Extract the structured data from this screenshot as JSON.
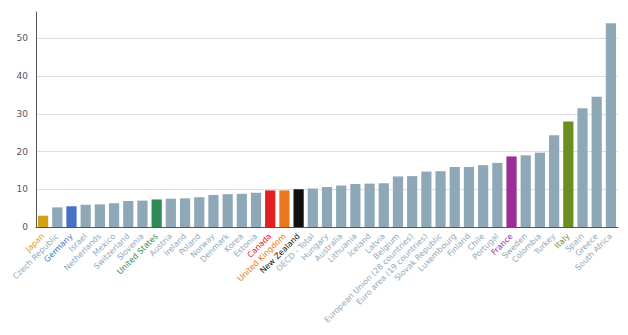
{
  "chart_data": {
    "type": "bar",
    "categories": [
      "Japan",
      "Czech Republic",
      "Germany",
      "Israel",
      "Netherlands",
      "Mexico",
      "Switzerland",
      "Slovenia",
      "United States",
      "Austria",
      "Ireland",
      "Poland",
      "Norway",
      "Denmark",
      "Korea",
      "Estonia",
      "Canada",
      "United Kingdom",
      "New Zealand",
      "OECD - Total",
      "Hungary",
      "Australia",
      "Lithuania",
      "Iceland",
      "Latvia",
      "Belgium",
      "European Union (28 countries)",
      "Euro area (19 countries)",
      "Slovak Republic",
      "Luxembourg",
      "Finland",
      "Chile",
      "Portugal",
      "France",
      "Sweden",
      "Colombia",
      "Turkey",
      "Italy",
      "Spain",
      "Greece",
      "South Africa"
    ],
    "values": [
      3.0,
      5.2,
      5.5,
      5.9,
      6.0,
      6.3,
      6.9,
      7.0,
      7.3,
      7.5,
      7.6,
      7.9,
      8.5,
      8.7,
      8.8,
      9.1,
      9.7,
      9.7,
      10.0,
      10.2,
      10.6,
      11.0,
      11.4,
      11.5,
      11.6,
      13.4,
      13.5,
      14.7,
      14.8,
      15.9,
      15.9,
      16.4,
      17.0,
      18.7,
      19.0,
      19.7,
      24.3,
      28.0,
      31.5,
      34.5,
      54.0
    ],
    "colors": [
      "#D4A017",
      "#8fa8b8",
      "#4472C4",
      "#8fa8b8",
      "#8fa8b8",
      "#8fa8b8",
      "#8fa8b8",
      "#8fa8b8",
      "#2e8b57",
      "#8fa8b8",
      "#8fa8b8",
      "#8fa8b8",
      "#8fa8b8",
      "#8fa8b8",
      "#8fa8b8",
      "#8fa8b8",
      "#e02020",
      "#e87820",
      "#111111",
      "#8fa8b8",
      "#8fa8b8",
      "#8fa8b8",
      "#8fa8b8",
      "#8fa8b8",
      "#8fa8b8",
      "#8fa8b8",
      "#8fa8b8",
      "#8fa8b8",
      "#8fa8b8",
      "#8fa8b8",
      "#8fa8b8",
      "#8fa8b8",
      "#8fa8b8",
      "#9b2d9b",
      "#8fa8b8",
      "#8fa8b8",
      "#8fa8b8",
      "#6b8e23",
      "#8fa8b8",
      "#8fa8b8",
      "#8fa8b8"
    ],
    "ylim": [
      0,
      57
    ],
    "yticks": [
      0,
      10,
      20,
      30,
      40,
      50
    ],
    "grid": true
  }
}
